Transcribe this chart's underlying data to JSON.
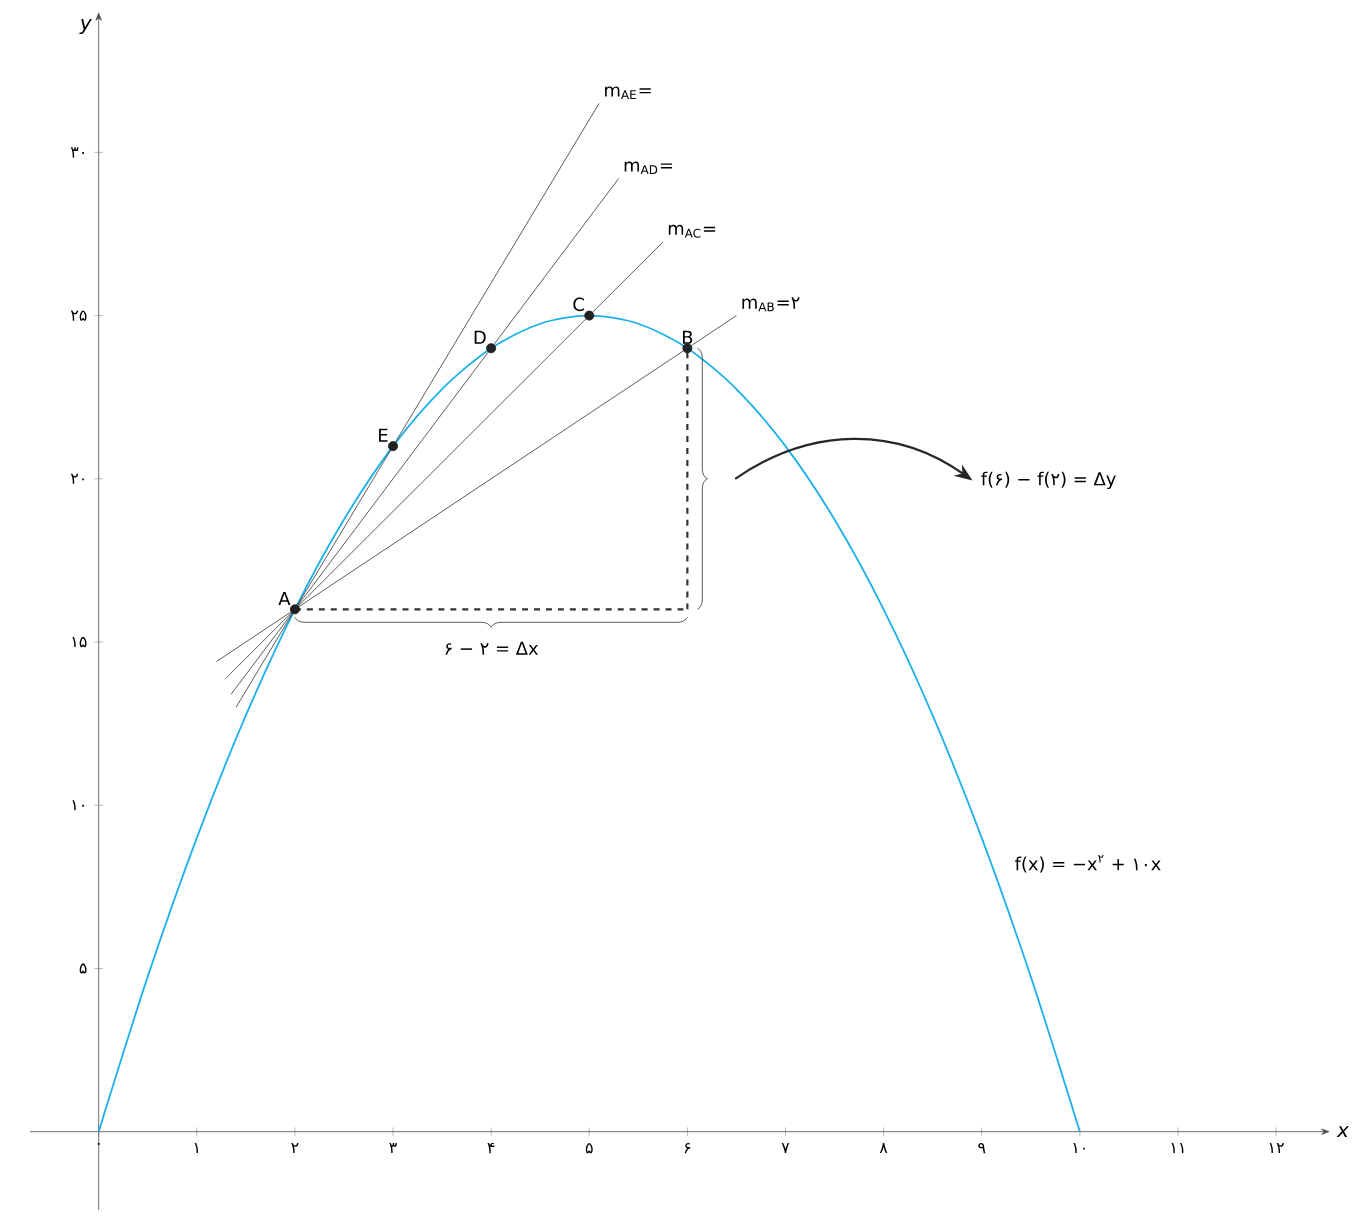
{
  "chart_data": {
    "type": "line",
    "xlabel": "x",
    "ylabel": "y",
    "xlim": [
      -0.7,
      12.55
    ],
    "ylim": [
      -2.4,
      34.3
    ],
    "xticks": [
      {
        "value": 0,
        "label": "۰"
      },
      {
        "value": 1,
        "label": "۱"
      },
      {
        "value": 2,
        "label": "۲"
      },
      {
        "value": 3,
        "label": "۳"
      },
      {
        "value": 4,
        "label": "۴"
      },
      {
        "value": 5,
        "label": "۵"
      },
      {
        "value": 6,
        "label": "۶"
      },
      {
        "value": 7,
        "label": "۷"
      },
      {
        "value": 8,
        "label": "۸"
      },
      {
        "value": 9,
        "label": "۹"
      },
      {
        "value": 10,
        "label": "۱۰"
      },
      {
        "value": 11,
        "label": "۱۱"
      },
      {
        "value": 12,
        "label": "۱۲"
      }
    ],
    "yticks": [
      {
        "value": 5,
        "label": "۵"
      },
      {
        "value": 10,
        "label": "۱۰"
      },
      {
        "value": 15,
        "label": "۱۵"
      },
      {
        "value": 20,
        "label": "۲۰"
      },
      {
        "value": 25,
        "label": "۲۵"
      },
      {
        "value": 30,
        "label": "۳۰"
      }
    ],
    "series": [
      {
        "color": "#1ab0e8",
        "x": [
          0,
          0.5,
          1,
          1.5,
          2,
          2.5,
          3,
          3.5,
          4,
          4.5,
          5,
          5.5,
          6,
          6.5,
          7,
          7.5,
          8,
          8.5,
          9,
          9.5,
          10
        ],
        "values": [
          0,
          4.75,
          9,
          12.75,
          16,
          18.75,
          21,
          22.75,
          24,
          24.75,
          25,
          24.75,
          24,
          22.75,
          21,
          18.75,
          16,
          12.75,
          9,
          4.75,
          0
        ]
      },
      {
        "color": "#333333",
        "x": [
          1.4,
          5.1
        ],
        "values": [
          13,
          31.5
        ]
      },
      {
        "color": "#333333",
        "x": [
          1.35,
          5.3
        ],
        "values": [
          13.4,
          29.2
        ]
      },
      {
        "color": "#333333",
        "x": [
          1.3,
          5.75
        ],
        "values": [
          13.9,
          27.25
        ]
      },
      {
        "color": "#333333",
        "x": [
          1.2,
          6.5
        ],
        "values": [
          14.4,
          25
        ]
      },
      {
        "color": "#333333",
        "line_style": "dashed",
        "x": [
          2,
          6
        ],
        "values": [
          16,
          16
        ]
      },
      {
        "color": "#333333",
        "line_style": "dashed",
        "x": [
          6,
          6
        ],
        "values": [
          16,
          24
        ]
      },
      {
        "type": "scatter",
        "color": "#222222",
        "x": [
          2,
          3,
          4,
          5,
          6
        ],
        "values": [
          16,
          21,
          24,
          25,
          24
        ]
      }
    ],
    "annotations": [
      {
        "text": "A",
        "x": 2,
        "y": 16
      },
      {
        "text": "E",
        "x": 3,
        "y": 21
      },
      {
        "text": "D",
        "x": 4,
        "y": 24
      },
      {
        "text": "C",
        "x": 5,
        "y": 25
      },
      {
        "text": "B",
        "x": 6,
        "y": 24
      },
      {
        "text": "m$_{AE}$=",
        "x": 5.1,
        "y": 31.5
      },
      {
        "text": "m$_{AD}$=",
        "x": 5.3,
        "y": 29.2
      },
      {
        "text": "m$_{AC}$=",
        "x": 5.75,
        "y": 27.25
      },
      {
        "text": "m$_{AB}$=۲",
        "x": 6.5,
        "y": 25
      },
      {
        "text": "۶ − ۲ = Δx",
        "x": 4,
        "y": 16
      },
      "f(۶) − f(۲) = Δy",
      "f(x) = −x$^{۲}$ + ۱۰x"
    ]
  }
}
